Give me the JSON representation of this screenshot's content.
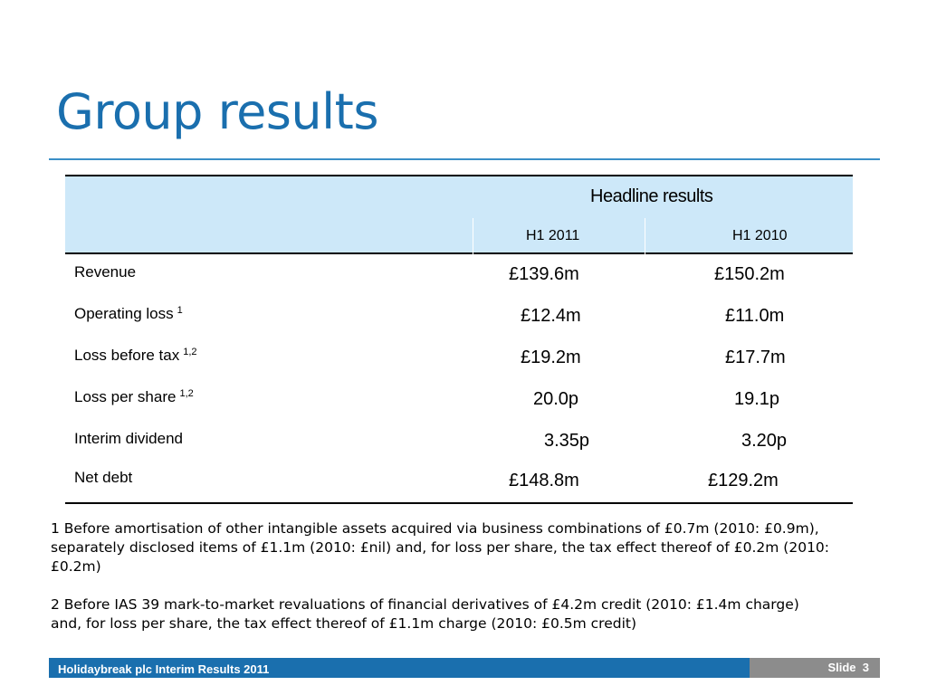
{
  "title": "Group results",
  "table": {
    "headline": "Headline results",
    "columns": [
      "H1 2011",
      "H1 2010"
    ],
    "rows": [
      {
        "label": "Revenue",
        "sup": "",
        "values": [
          "£139.6m",
          "£150.2m"
        ]
      },
      {
        "label": "Operating loss",
        "sup": "1",
        "values": [
          "£12.4m",
          "£11.0m"
        ]
      },
      {
        "label": "Loss before tax",
        "sup": "1,2",
        "values": [
          "£19.2m",
          "£17.7m"
        ]
      },
      {
        "label": "Loss per share",
        "sup": "1,2",
        "values": [
          "20.0p",
          "19.1p"
        ]
      },
      {
        "label": "Interim dividend",
        "sup": "",
        "values": [
          "3.35p",
          "3.20p"
        ]
      },
      {
        "label": "Net debt",
        "sup": "",
        "values": [
          "£148.8m",
          "£129.2m"
        ]
      }
    ]
  },
  "footnotes": [
    "1 Before amortisation of other intangible assets acquired via business combinations of £0.7m (2010: £0.9m), separately disclosed items of £1.1m (2010: £nil) and, for loss per share, the tax effect thereof of £0.2m (2010: £0.2m)",
    "2 Before IAS 39 mark-to-market revaluations of financial derivatives of £4.2m credit (2010: £1.4m charge) and, for loss per share, the tax effect thereof of £1.1m charge (2010: £0.5m credit)"
  ],
  "footer": {
    "text": "Holidaybreak plc Interim Results 2011",
    "slide_label": "Slide",
    "slide_number": "3"
  },
  "colors": {
    "accent": "#1a6fae",
    "header_fill": "#cde8f9",
    "slide_box": "#8c8c8c"
  }
}
